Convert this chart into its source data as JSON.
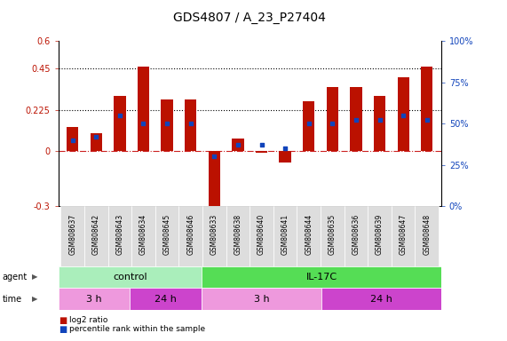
{
  "title": "GDS4807 / A_23_P27404",
  "samples": [
    "GSM808637",
    "GSM808642",
    "GSM808643",
    "GSM808634",
    "GSM808645",
    "GSM808646",
    "GSM808633",
    "GSM808638",
    "GSM808640",
    "GSM808641",
    "GSM808644",
    "GSM808635",
    "GSM808636",
    "GSM808639",
    "GSM808647",
    "GSM808648"
  ],
  "log2_ratio": [
    0.13,
    0.1,
    0.3,
    0.46,
    0.28,
    0.28,
    -0.34,
    0.07,
    -0.01,
    -0.06,
    0.27,
    0.35,
    0.35,
    0.3,
    0.4,
    0.46
  ],
  "percentile": [
    40,
    42,
    55,
    50,
    50,
    50,
    30,
    37,
    37,
    35,
    50,
    50,
    52,
    52,
    55,
    52
  ],
  "ylim_left": [
    -0.3,
    0.6
  ],
  "ylim_right": [
    0,
    100
  ],
  "hlines": [
    0.225,
    0.45
  ],
  "bar_color": "#bb1100",
  "dot_color": "#1144bb",
  "zero_line_color": "#cc2222",
  "left_ticks": [
    -0.3,
    0,
    0.225,
    0.45,
    0.6
  ],
  "left_tick_labels": [
    "-0.3",
    "0",
    "0.225",
    "0.45",
    "0.6"
  ],
  "right_ticks": [
    0,
    25,
    50,
    75,
    100
  ],
  "right_tick_labels": [
    "0%",
    "25%",
    "50%",
    "75%",
    "100%"
  ],
  "agent_groups": [
    {
      "label": "control",
      "start": 0,
      "end": 6,
      "color": "#aaeebb"
    },
    {
      "label": "IL-17C",
      "start": 6,
      "end": 16,
      "color": "#55dd55"
    }
  ],
  "time_groups": [
    {
      "label": "3 h",
      "start": 0,
      "end": 3,
      "color": "#ee99dd"
    },
    {
      "label": "24 h",
      "start": 3,
      "end": 6,
      "color": "#cc44cc"
    },
    {
      "label": "3 h",
      "start": 6,
      "end": 11,
      "color": "#ee99dd"
    },
    {
      "label": "24 h",
      "start": 11,
      "end": 16,
      "color": "#cc44cc"
    }
  ],
  "legend_items": [
    {
      "label": "log2 ratio",
      "color": "#bb1100"
    },
    {
      "label": "percentile rank within the sample",
      "color": "#1144bb"
    }
  ],
  "bar_width": 0.5,
  "title_fontsize": 10,
  "tick_fontsize": 7,
  "label_fontsize": 7,
  "sample_fontsize": 5.5,
  "annotation_fontsize": 8
}
